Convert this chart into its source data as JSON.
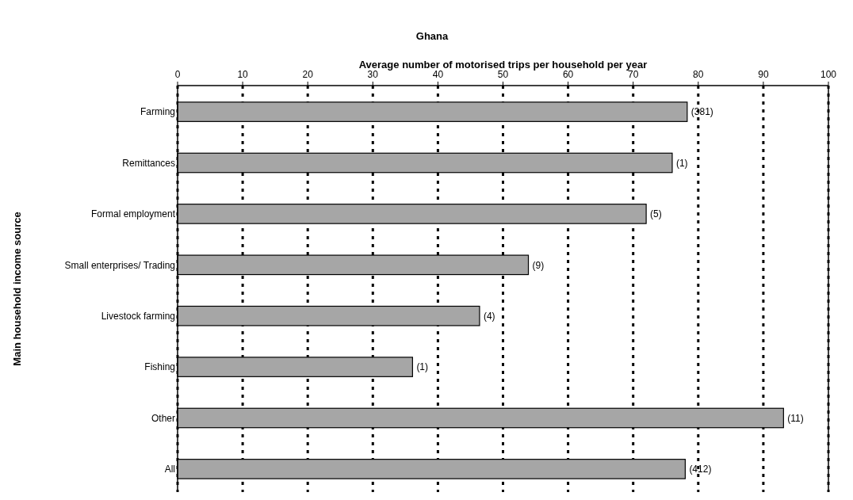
{
  "chart_data": {
    "type": "bar",
    "orientation": "horizontal",
    "title": "Ghana",
    "xlabel": "Average number of motorised trips per household per year",
    "ylabel": "Main household income source",
    "categories": [
      "Farming",
      "Remittances",
      "Formal employment",
      "Small enterprises/ Trading",
      "Livestock farming",
      "Fishing",
      "Other",
      "All"
    ],
    "values": [
      78.3,
      76,
      72,
      53.9,
      46.4,
      36.1,
      93.1,
      78
    ],
    "annotations": [
      {
        "text": "(381)",
        "x": 78.3,
        "y": "Farming"
      },
      {
        "text": "(1)",
        "x": 76,
        "y": "Remittances"
      },
      {
        "text": "(5)",
        "x": 72,
        "y": "Formal employment"
      },
      {
        "text": "(9)",
        "x": 53.9,
        "y": "Small enterprises/ Trading"
      },
      {
        "text": "(4)",
        "x": 46.4,
        "y": "Livestock farming"
      },
      {
        "text": "(1)",
        "x": 36.1,
        "y": "Fishing"
      },
      {
        "text": "(11)",
        "x": 93.1,
        "y": "Other"
      },
      {
        "text": "(412)",
        "x": 78,
        "y": "All"
      }
    ],
    "color": "#a6a6a6",
    "xlim": [
      0,
      100
    ],
    "xticks": [
      0,
      10,
      20,
      30,
      40,
      50,
      60,
      70,
      80,
      90,
      100
    ],
    "grid": "x",
    "line_style": "dotted"
  }
}
